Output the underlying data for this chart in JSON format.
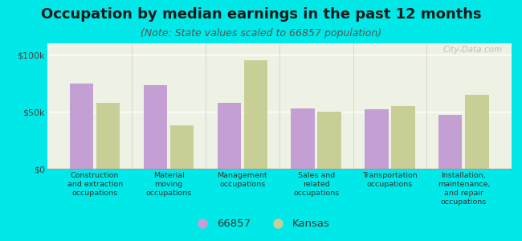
{
  "title": "Occupation by median earnings in the past 12 months",
  "subtitle": "(Note: State values scaled to 66857 population)",
  "categories": [
    "Construction\nand extraction\noccupations",
    "Material\nmoving\noccupations",
    "Management\noccupations",
    "Sales and\nrelated\noccupations",
    "Transportation\noccupations",
    "Installation,\nmaintenance,\nand repair\noccupations"
  ],
  "values_66857": [
    75000,
    73000,
    58000,
    53000,
    52000,
    47000
  ],
  "values_kansas": [
    58000,
    38000,
    95000,
    50000,
    55000,
    65000
  ],
  "color_66857": "#c49fd4",
  "color_kansas": "#c8cf96",
  "background_color": "#00e8e8",
  "plot_bg_color": "#eef2e4",
  "ylim": [
    0,
    110000
  ],
  "ytick_labels": [
    "$0",
    "$50k",
    "$100k"
  ],
  "title_fontsize": 13,
  "subtitle_fontsize": 9,
  "legend_label_66857": "66857",
  "legend_label_kansas": "Kansas",
  "watermark": "City-Data.com"
}
